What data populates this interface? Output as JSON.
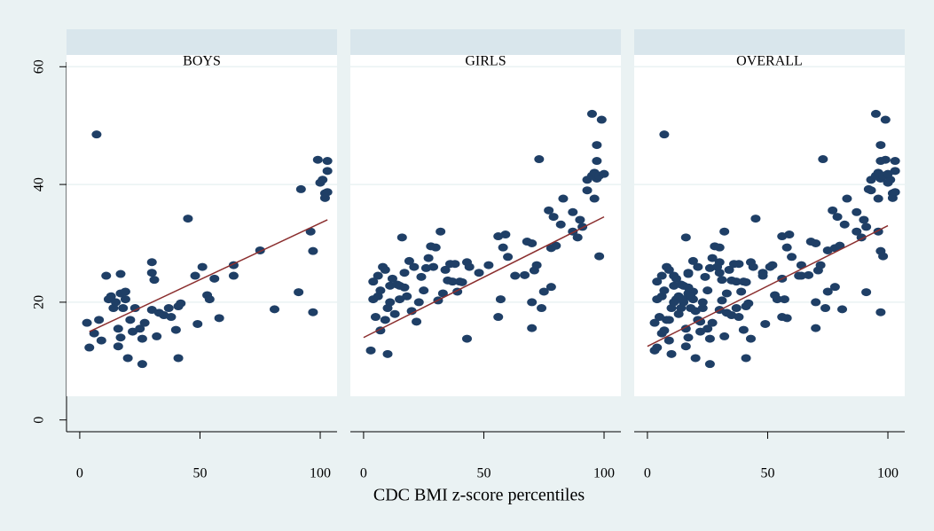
{
  "chart_data": {
    "type": "scatter",
    "xlabel": "CDC BMI z-score percentiles",
    "xlim": [
      -5.5,
      107
    ],
    "xticks": [
      0,
      50,
      100
    ],
    "ylim": [
      -2,
      62
    ],
    "yticks": [
      0,
      20,
      40,
      60
    ],
    "grid": true,
    "point_color": "#1f3f66",
    "fit_color": "#8b2e2e",
    "panels": [
      {
        "title": "BOYS",
        "x": [
          3,
          4,
          6,
          7,
          8,
          9,
          11,
          12,
          13,
          14,
          15,
          16,
          16,
          17,
          17,
          17,
          18,
          19,
          19,
          20,
          21,
          22,
          23,
          25,
          26,
          27,
          26,
          30,
          30,
          31,
          30,
          33,
          32,
          35,
          37,
          38,
          40,
          41,
          42,
          41,
          45,
          49,
          48,
          51,
          53,
          54,
          56,
          58,
          64,
          64,
          75,
          81,
          91,
          92,
          96,
          97,
          97,
          99,
          100,
          101,
          102,
          102,
          103,
          103,
          103
        ],
        "values": [
          16.5,
          12.3,
          14.7,
          48.5,
          17,
          13.5,
          24.5,
          20.5,
          21,
          19,
          20,
          12.5,
          15.5,
          14,
          21.5,
          24.8,
          19,
          21.8,
          20.5,
          10.5,
          17,
          15,
          19,
          15.5,
          9.5,
          16.5,
          13.8,
          26.8,
          25,
          23.8,
          18.7,
          18.2,
          14.2,
          17.8,
          19,
          17.5,
          15.3,
          19.3,
          19.8,
          10.5,
          34.2,
          16.3,
          24.5,
          26,
          21.2,
          20.5,
          24,
          17.3,
          26.3,
          24.5,
          28.8,
          18.8,
          21.7,
          39.2,
          32,
          28.7,
          18.3,
          44.2,
          40.3,
          40.8,
          38.5,
          37.7,
          42.3,
          44,
          38.7
        ],
        "fit": {
          "x": [
            4,
            103
          ],
          "values": [
            15,
            34
          ]
        }
      },
      {
        "title": "GIRLS",
        "x": [
          3,
          4,
          4,
          5,
          6,
          6,
          7,
          7,
          8,
          9,
          9,
          10,
          10,
          11,
          11,
          12,
          13,
          14,
          15,
          15,
          16,
          17,
          17,
          18,
          19,
          20,
          21,
          22,
          23,
          24,
          25,
          26,
          27,
          28,
          29,
          30,
          31,
          32,
          33,
          34,
          35,
          36,
          37,
          38,
          39,
          40,
          41,
          43,
          43,
          44,
          48,
          52,
          56,
          56,
          57,
          58,
          59,
          60,
          63,
          67,
          68,
          70,
          70,
          70,
          71,
          72,
          73,
          74,
          75,
          77,
          78,
          78,
          79,
          80,
          82,
          83,
          87,
          87,
          89,
          90,
          91,
          93,
          93,
          95,
          95,
          96,
          96,
          97,
          97,
          97,
          98,
          98,
          99,
          100
        ],
        "values": [
          11.8,
          20.5,
          23.5,
          17.5,
          21,
          24.5,
          15.2,
          22,
          26,
          17,
          25.5,
          11.2,
          19,
          20,
          22.8,
          24,
          18,
          23,
          20.5,
          22.8,
          31,
          25,
          22.5,
          21,
          27,
          18.5,
          26,
          16.7,
          20,
          24.3,
          22,
          25.8,
          27.5,
          29.5,
          26,
          29.3,
          20.3,
          32,
          21.5,
          25.5,
          23.7,
          26.5,
          23.5,
          26.5,
          21.8,
          23.5,
          23.4,
          13.8,
          26.8,
          26,
          25,
          26.3,
          17.5,
          31.2,
          20.5,
          29.3,
          31.5,
          27.7,
          24.5,
          24.6,
          30.3,
          15.6,
          20,
          30,
          25.4,
          26.3,
          44.3,
          19,
          21.8,
          35.6,
          29.2,
          22.6,
          34.5,
          29.6,
          33.2,
          37.6,
          35.3,
          32,
          31,
          34,
          32.8,
          39,
          40.8,
          52,
          41.5,
          42,
          37.6,
          41,
          44,
          46.7,
          27.8,
          41.5,
          51,
          41.8
        ],
        "fit": {
          "x": [
            0,
            100
          ],
          "values": [
            14,
            34.5
          ]
        }
      },
      {
        "title": "OVERALL",
        "x": [
          3,
          4,
          6,
          7,
          8,
          9,
          11,
          12,
          13,
          14,
          15,
          16,
          16,
          17,
          17,
          17,
          18,
          19,
          19,
          20,
          21,
          22,
          23,
          25,
          26,
          27,
          26,
          30,
          30,
          31,
          30,
          33,
          32,
          35,
          37,
          38,
          40,
          41,
          42,
          41,
          45,
          49,
          48,
          51,
          53,
          54,
          56,
          58,
          64,
          64,
          75,
          81,
          91,
          92,
          96,
          97,
          97,
          99,
          100,
          101,
          102,
          102,
          103,
          103,
          103,
          3,
          4,
          4,
          5,
          6,
          6,
          7,
          7,
          8,
          9,
          9,
          10,
          10,
          11,
          11,
          12,
          13,
          14,
          15,
          15,
          16,
          17,
          17,
          18,
          19,
          20,
          21,
          22,
          23,
          24,
          25,
          26,
          27,
          28,
          29,
          30,
          31,
          32,
          33,
          34,
          35,
          36,
          37,
          38,
          39,
          40,
          41,
          43,
          43,
          44,
          48,
          52,
          56,
          56,
          57,
          58,
          59,
          60,
          63,
          67,
          68,
          70,
          70,
          70,
          71,
          72,
          73,
          74,
          75,
          77,
          78,
          78,
          79,
          80,
          82,
          83,
          87,
          87,
          89,
          90,
          91,
          93,
          93,
          95,
          95,
          96,
          96,
          97,
          97,
          97,
          98,
          98,
          99,
          100
        ],
        "values": [
          16.5,
          12.3,
          14.7,
          48.5,
          17,
          13.5,
          24.5,
          20.5,
          21,
          19,
          20,
          12.5,
          15.5,
          14,
          21.5,
          24.8,
          19,
          21.8,
          20.5,
          10.5,
          17,
          15,
          19,
          15.5,
          9.5,
          16.5,
          13.8,
          26.8,
          25,
          23.8,
          18.7,
          18.2,
          14.2,
          17.8,
          19,
          17.5,
          15.3,
          19.3,
          19.8,
          10.5,
          34.2,
          16.3,
          24.5,
          26,
          21.2,
          20.5,
          24,
          17.3,
          26.3,
          24.5,
          28.8,
          18.8,
          21.7,
          39.2,
          32,
          28.7,
          18.3,
          44.2,
          40.3,
          40.8,
          38.5,
          37.7,
          42.3,
          44,
          38.7,
          11.8,
          20.5,
          23.5,
          17.5,
          21,
          24.5,
          15.2,
          22,
          26,
          17,
          25.5,
          11.2,
          19,
          20,
          22.8,
          24,
          18,
          23,
          20.5,
          22.8,
          31,
          25,
          22.5,
          21,
          27,
          18.5,
          26,
          16.7,
          20,
          24.3,
          22,
          25.8,
          27.5,
          29.5,
          26,
          29.3,
          20.3,
          32,
          21.5,
          25.5,
          23.7,
          26.5,
          23.5,
          26.5,
          21.8,
          23.5,
          23.4,
          13.8,
          26.8,
          26,
          25,
          26.3,
          17.5,
          31.2,
          20.5,
          29.3,
          31.5,
          27.7,
          24.5,
          24.6,
          30.3,
          15.6,
          20,
          30,
          25.4,
          26.3,
          44.3,
          19,
          21.8,
          35.6,
          29.2,
          22.6,
          34.5,
          29.6,
          33.2,
          37.6,
          35.3,
          32,
          31,
          34,
          32.8,
          39,
          40.8,
          52,
          41.5,
          42,
          37.6,
          41,
          44,
          46.7,
          27.8,
          41.5,
          51,
          41.8
        ],
        "fit": {
          "x": [
            0,
            100
          ],
          "values": [
            12.5,
            33
          ]
        }
      }
    ]
  }
}
